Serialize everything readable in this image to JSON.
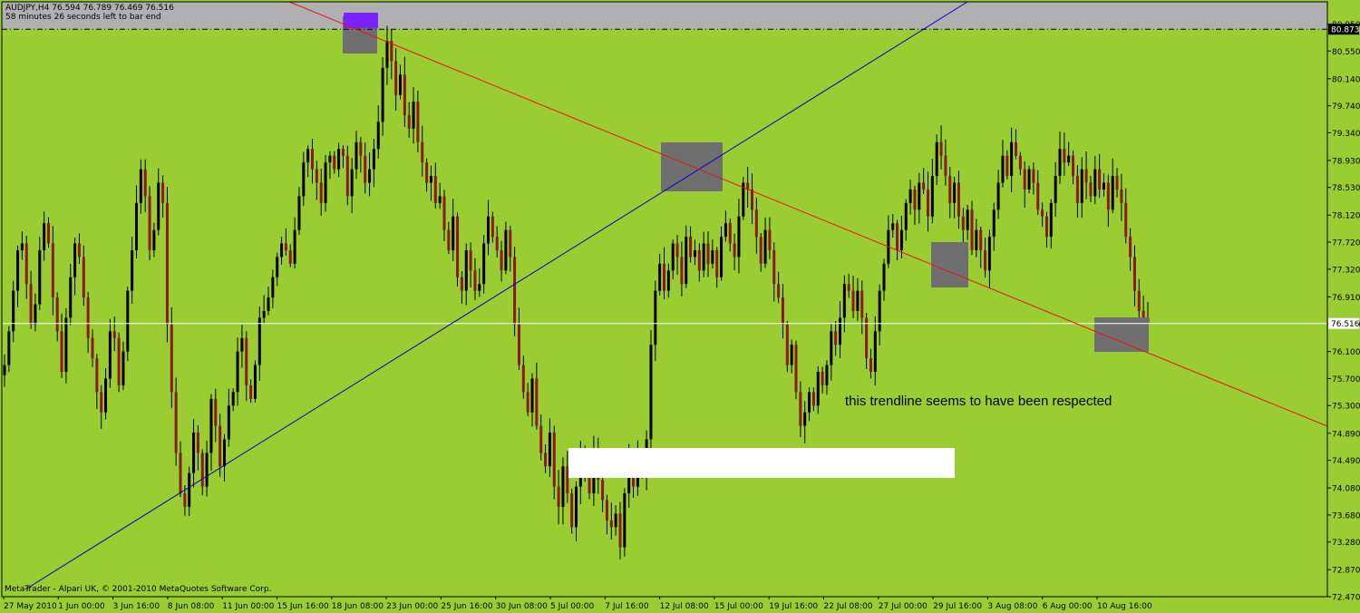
{
  "header": {
    "symbol_line": "AUDJPY,H4  76.594 76.789 76.469 76.516",
    "countdown": "58 minutes 26 seconds left to bar end"
  },
  "footer": {
    "copyright": "MetaTrader - Alpari UK, © 2001-2010 MetaQuotes Software Corp."
  },
  "annotation": "this trendline seems to have been respected",
  "colors": {
    "background": "#9acd32",
    "bull_candle": "#000000",
    "bear_candle": "#8b1a1a",
    "wick": "#000000",
    "support_line": "#0000cc",
    "resistance_line": "#ee1111",
    "bid_line": "#ffffff",
    "highlight_box": "#6f6f6f",
    "top_band": "#b0b0b0",
    "peak_marker": "#7a22ff"
  },
  "chart_data": {
    "type": "candlestick",
    "symbol": "AUDJPY",
    "timeframe": "H4",
    "ylim": [
      72.47,
      80.97
    ],
    "yticks": [
      72.47,
      72.87,
      73.28,
      73.68,
      74.08,
      74.49,
      74.89,
      75.3,
      75.7,
      76.1,
      76.51,
      76.91,
      77.32,
      77.72,
      78.12,
      78.53,
      78.93,
      79.34,
      79.74,
      80.14,
      80.55,
      80.95
    ],
    "xticks": [
      "27 May 2010",
      "1 Jun 00:00",
      "3 Jun 16:00",
      "8 Jun 08:00",
      "11 Jun 00:00",
      "15 Jun 16:00",
      "18 Jun 08:00",
      "23 Jun 00:00",
      "25 Jun 16:00",
      "30 Jun 08:00",
      "5 Jul 00:00",
      "7 Jul 16:00",
      "12 Jul 08:00",
      "15 Jul 00:00",
      "19 Jul 16:00",
      "22 Jul 08:00",
      "27 Jul 00:00",
      "29 Jul 16:00",
      "3 Aug 08:00",
      "6 Aug 00:00",
      "10 Aug 16:00"
    ],
    "current_price": 76.516,
    "current_label": "76.516",
    "upper_level": 80.873,
    "upper_label": "80.873",
    "last_bar": {
      "open": 76.594,
      "high": 76.789,
      "low": 76.469,
      "close": 76.516
    },
    "closes": [
      75.9,
      76.4,
      77.0,
      77.6,
      77.7,
      77.1,
      76.5,
      76.8,
      77.6,
      78.0,
      77.7,
      76.9,
      76.4,
      75.8,
      76.6,
      77.2,
      77.7,
      77.5,
      76.9,
      76.3,
      76.0,
      75.5,
      75.2,
      75.7,
      76.4,
      76.3,
      75.6,
      76.1,
      77.0,
      77.6,
      78.3,
      78.8,
      78.4,
      77.6,
      77.9,
      78.6,
      78.3,
      76.5,
      75.5,
      74.6,
      74.0,
      73.8,
      74.3,
      74.9,
      74.6,
      74.1,
      74.6,
      75.4,
      75.0,
      74.4,
      74.8,
      75.3,
      75.5,
      76.1,
      76.3,
      75.6,
      75.4,
      75.9,
      76.6,
      76.7,
      76.9,
      77.2,
      77.5,
      77.7,
      77.6,
      77.4,
      77.9,
      78.4,
      78.9,
      79.1,
      78.8,
      78.6,
      78.3,
      78.9,
      79.0,
      78.8,
      79.1,
      79.0,
      78.4,
      78.8,
      79.2,
      79.0,
      78.6,
      78.8,
      79.1,
      79.5,
      80.3,
      80.7,
      80.4,
      79.9,
      80.2,
      79.6,
      79.4,
      79.8,
      79.2,
      78.9,
      78.6,
      78.7,
      78.3,
      78.4,
      77.9,
      77.6,
      78.1,
      77.2,
      77.0,
      77.6,
      77.3,
      77.0,
      77.1,
      77.7,
      78.1,
      77.8,
      77.6,
      77.3,
      77.9,
      77.5,
      76.5,
      75.9,
      75.5,
      75.2,
      75.7,
      75.0,
      74.6,
      74.4,
      74.9,
      74.1,
      73.8,
      74.4,
      74.0,
      73.5,
      74.1,
      74.6,
      74.3,
      74.0,
      74.6,
      74.2,
      73.9,
      73.6,
      73.5,
      73.7,
      73.2,
      74.0,
      74.5,
      74.1,
      74.6,
      74.3,
      74.8,
      76.2,
      77.0,
      77.4,
      77.0,
      77.3,
      77.7,
      77.5,
      77.1,
      77.8,
      77.5,
      77.6,
      77.3,
      77.7,
      77.4,
      77.6,
      77.2,
      77.8,
      78.0,
      77.7,
      77.5,
      78.1,
      78.6,
      78.5,
      78.2,
      77.8,
      77.4,
      77.9,
      77.6,
      77.1,
      76.9,
      76.5,
      75.9,
      76.2,
      75.5,
      75.0,
      75.2,
      75.5,
      75.3,
      75.8,
      75.6,
      75.9,
      76.4,
      76.2,
      76.6,
      77.1,
      77.0,
      76.7,
      77.0,
      76.6,
      76.0,
      75.8,
      76.4,
      77.0,
      77.4,
      77.9,
      78.0,
      77.6,
      77.9,
      78.3,
      78.5,
      78.2,
      78.6,
      78.5,
      78.1,
      78.7,
      79.2,
      79.0,
      78.7,
      78.3,
      78.6,
      78.1,
      77.9,
      78.2,
      77.6,
      77.9,
      77.6,
      77.3,
      77.8,
      78.2,
      78.6,
      79.0,
      78.7,
      79.2,
      79.0,
      78.8,
      78.5,
      78.8,
      78.6,
      78.2,
      78.1,
      77.8,
      78.3,
      78.7,
      79.1,
      78.9,
      79.0,
      78.7,
      78.3,
      78.8,
      78.6,
      78.4,
      78.8,
      78.5,
      78.6,
      78.2,
      78.7,
      78.5,
      78.3,
      77.8,
      77.5,
      77.0,
      76.7,
      76.6,
      76.516
    ]
  }
}
